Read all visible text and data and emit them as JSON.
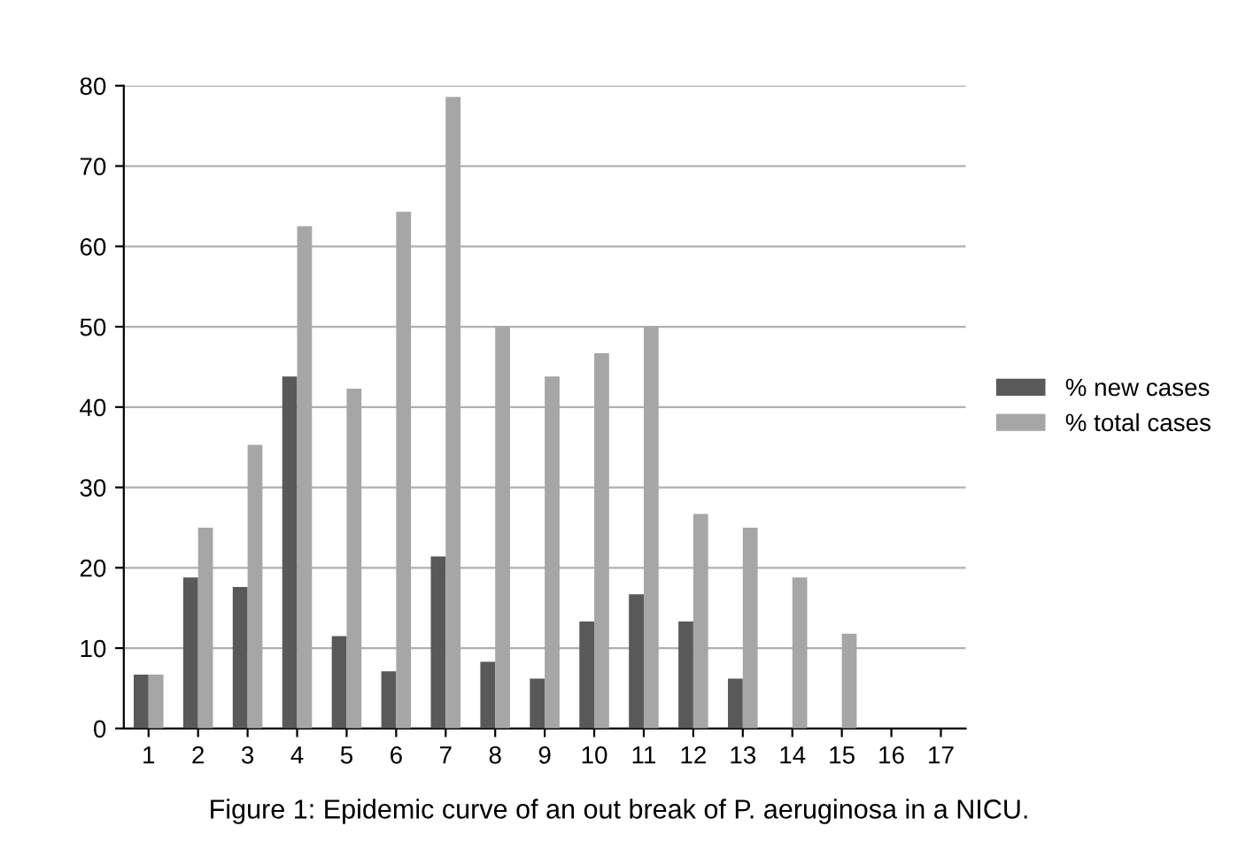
{
  "chart_data": {
    "type": "bar",
    "categories": [
      "1",
      "2",
      "3",
      "4",
      "5",
      "6",
      "7",
      "8",
      "9",
      "10",
      "11",
      "12",
      "13",
      "14",
      "15",
      "16",
      "17"
    ],
    "series": [
      {
        "name": "% new cases",
        "color": "#595959",
        "values": [
          6.7,
          18.8,
          17.6,
          43.8,
          11.5,
          7.1,
          21.4,
          8.3,
          6.2,
          13.3,
          16.7,
          13.3,
          6.2,
          0,
          0,
          0,
          0
        ]
      },
      {
        "name": "% total cases",
        "color": "#a6a6a6",
        "values": [
          6.7,
          25,
          35.3,
          62.5,
          42.3,
          64.3,
          78.6,
          50,
          43.8,
          46.7,
          50,
          26.7,
          25,
          18.8,
          11.8,
          0,
          0
        ]
      }
    ],
    "ylim": [
      0,
      80
    ],
    "yticks": [
      0,
      10,
      20,
      30,
      40,
      50,
      60,
      70,
      80
    ],
    "grid": "y",
    "legend": "right",
    "annotations": [
      "Figure 1: Epidemic curve of an out break of P. aeruginosa in a NICU."
    ]
  }
}
